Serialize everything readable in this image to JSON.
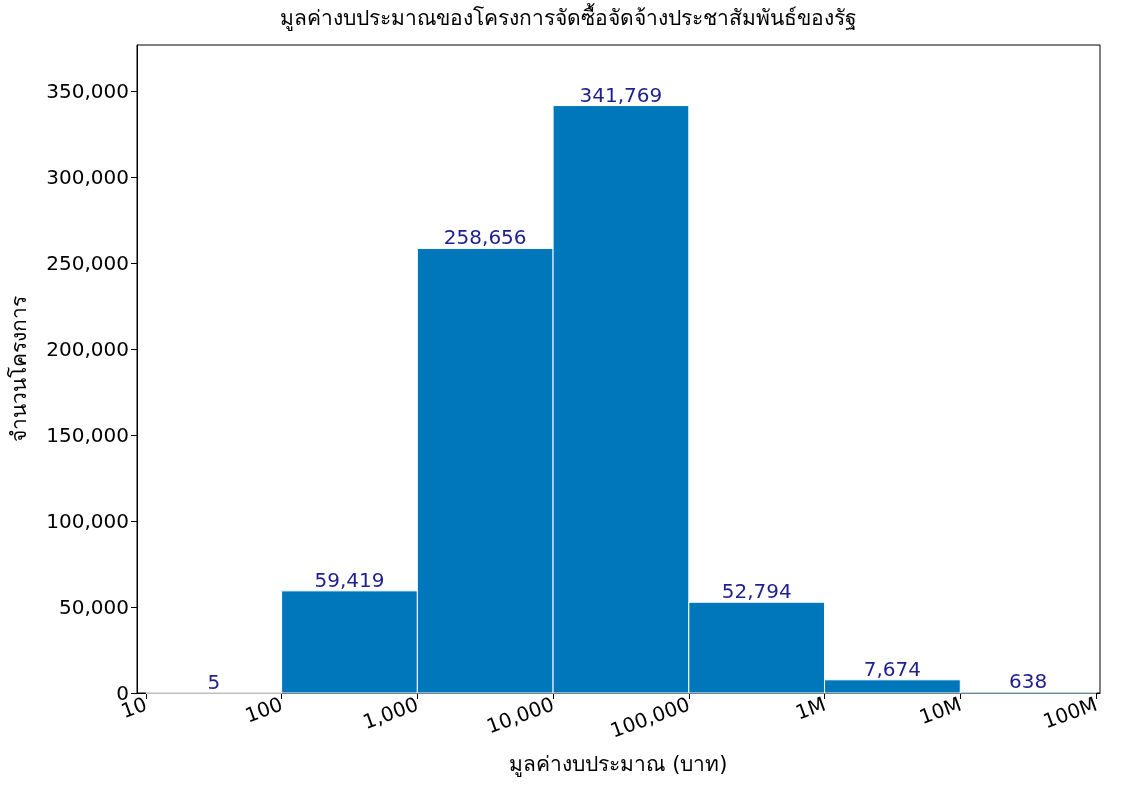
{
  "chart_data": {
    "type": "histogram",
    "title": "มูลค่างบประมาณของโครงการจัดซื้อจัดจ้างประชาสัมพันธ์ของรัฐ",
    "xlabel": "มูลค่างบประมาณ (บาท)",
    "ylabel": "จำนวนโครงการ",
    "bins": [
      10,
      100,
      1000,
      10000,
      100000,
      1000000,
      10000000,
      100000000
    ],
    "values": [
      5,
      59419,
      258656,
      341769,
      52794,
      7674,
      638
    ],
    "value_labels": [
      "5",
      "59,419",
      "258,656",
      "341,769",
      "52,794",
      "7,674",
      "638"
    ],
    "color": "#0077bb",
    "log": "x",
    "grid": false,
    "xlim": [
      8.6,
      107000000
    ],
    "xticks": [
      10,
      100,
      {
        "value": 1000,
        "label": "1,000"
      },
      {
        "value": 10000,
        "label": "10,000"
      },
      {
        "value": 100000,
        "label": "100,000"
      },
      {
        "value": 1000000,
        "label": "1M"
      },
      {
        "value": 10000000,
        "label": "10M"
      },
      {
        "value": 100000000,
        "label": "100M"
      }
    ],
    "ylim": [
      0,
      377000
    ],
    "yticks": [
      0,
      {
        "value": 50000,
        "label": "50,000"
      },
      {
        "value": 100000,
        "label": "100,000"
      },
      {
        "value": 150000,
        "label": "150,000"
      },
      {
        "value": 200000,
        "label": "200,000"
      },
      {
        "value": 250000,
        "label": "250,000"
      },
      {
        "value": 300000,
        "label": "300,000"
      },
      {
        "value": 350000,
        "label": "350,000"
      }
    ]
  }
}
